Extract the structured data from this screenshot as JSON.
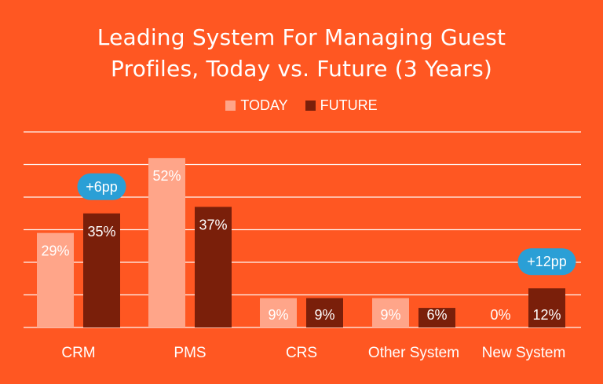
{
  "title_lines": [
    "Leading System For Managing Guest",
    "Profiles, Today vs. Future (3 Years)"
  ],
  "legend": [
    {
      "label": "TODAY",
      "color": "#FFA589"
    },
    {
      "label": "FUTURE",
      "color": "#7A1F0A"
    }
  ],
  "colors": {
    "background": "#FF5722",
    "gridline": "#ffffff",
    "badge": "#2A9FD6"
  },
  "chart_data": {
    "type": "bar",
    "title": "Leading System For Managing Guest Profiles, Today vs. Future (3 Years)",
    "categories": [
      "CRM",
      "PMS",
      "CRS",
      "Other System",
      "New System"
    ],
    "series": [
      {
        "name": "TODAY",
        "values": [
          29,
          52,
          9,
          9,
          0
        ],
        "labels": [
          "29%",
          "52%",
          "9%",
          "9%",
          "0%"
        ]
      },
      {
        "name": "FUTURE",
        "values": [
          35,
          37,
          9,
          6,
          12
        ],
        "labels": [
          "35%",
          "37%",
          "9%",
          "6%",
          "12%"
        ]
      }
    ],
    "ylim": [
      0,
      60
    ],
    "grid": true,
    "legend_position": "top-center",
    "annotations": [
      {
        "category": "CRM",
        "series": "FUTURE",
        "text": "+6pp"
      },
      {
        "category": "New System",
        "series": "FUTURE",
        "text": "+12pp"
      }
    ]
  }
}
